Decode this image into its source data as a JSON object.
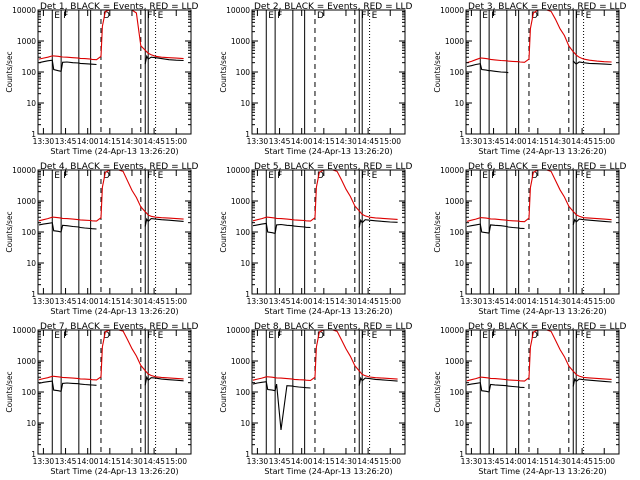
{
  "chart_data": {
    "type": "line",
    "y_scale": "log",
    "ylim": [
      1,
      10000
    ],
    "xlim": [
      "13:26:20",
      "15:10"
    ],
    "x_ticks": [
      "13:30",
      "13:45",
      "14:00",
      "14:15",
      "14:30",
      "14:45",
      "15:00"
    ],
    "y_ticks": [
      "1",
      "10",
      "100",
      "1000",
      "10000"
    ],
    "ylabel": "Counts/sec",
    "xlabel": "Start Time (24-Apr-13 13:26:20)",
    "legend_text": "BLACK = Events, RED = LLD",
    "series_colors": {
      "events": "#000000",
      "lld": "#dd0000"
    },
    "flag_lines": [
      {
        "time": "13:36",
        "style": "solid",
        "label": "E"
      },
      {
        "time": "13:42",
        "style": "solid",
        "label": "F"
      },
      {
        "time": "13:54",
        "style": "solid",
        "label": ""
      },
      {
        "time": "14:02",
        "style": "solid",
        "label": ""
      },
      {
        "time": "14:09",
        "style": "dashed",
        "label": "D"
      },
      {
        "time": "14:36",
        "style": "dashed",
        "label": ""
      },
      {
        "time": "14:39",
        "style": "solid",
        "label": "F"
      },
      {
        "time": "14:41",
        "style": "solid",
        "label": ""
      },
      {
        "time": "14:46",
        "style": "dotted",
        "label": "E"
      }
    ],
    "x_times": [
      "13:27",
      "13:30",
      "13:33",
      "13:36",
      "13:37",
      "13:40",
      "13:42",
      "13:43",
      "13:46",
      "13:50",
      "13:54",
      "13:55",
      "13:58",
      "14:02",
      "14:03",
      "14:06",
      "14:09",
      "14:10",
      "14:12",
      "14:15",
      "14:18",
      "14:21",
      "14:24",
      "14:27",
      "14:30",
      "14:33",
      "14:36",
      "14:39",
      "14:40",
      "14:41",
      "14:43",
      "14:46",
      "14:50",
      "14:55",
      "15:00",
      "15:05"
    ],
    "panels": [
      {
        "title": "Det 1",
        "events": [
          200,
          215,
          230,
          240,
          120,
          110,
          105,
          205,
          210,
          200,
          195,
          190,
          185,
          180,
          178,
          175,
          null,
          null,
          null,
          null,
          null,
          null,
          null,
          null,
          null,
          null,
          null,
          180,
          320,
          260,
          300,
          290,
          270,
          250,
          240,
          235
        ],
        "lld": [
          260,
          280,
          300,
          330,
          330,
          320,
          310,
          305,
          300,
          290,
          280,
          275,
          270,
          260,
          255,
          250,
          320,
          3000,
          9000,
          10000,
          10000,
          10000,
          10000,
          10000,
          10000,
          8000,
          700,
          500,
          450,
          400,
          360,
          320,
          300,
          290,
          280,
          270
        ]
      },
      {
        "title": "Det 2",
        "events": [],
        "lld": []
      },
      {
        "title": "Det 3",
        "events": [
          150,
          160,
          175,
          185,
          120,
          115,
          110,
          110,
          105,
          100,
          98,
          95,
          null,
          null,
          null,
          null,
          null,
          null,
          null,
          null,
          null,
          null,
          null,
          null,
          null,
          null,
          null,
          230,
          200,
          180,
          210,
          200,
          190,
          185,
          180,
          175
        ],
        "lld": [
          200,
          220,
          250,
          280,
          280,
          270,
          260,
          255,
          245,
          235,
          230,
          225,
          220,
          215,
          210,
          205,
          260,
          2500,
          8000,
          10000,
          10000,
          10000,
          9000,
          5000,
          2500,
          1500,
          700,
          450,
          400,
          350,
          300,
          260,
          240,
          225,
          215,
          210
        ]
      },
      {
        "title": "Det 4",
        "events": [
          170,
          180,
          190,
          200,
          110,
          105,
          100,
          165,
          160,
          150,
          145,
          140,
          135,
          130,
          128,
          125,
          null,
          null,
          null,
          null,
          null,
          null,
          null,
          null,
          null,
          null,
          null,
          150,
          260,
          220,
          270,
          260,
          250,
          240,
          230,
          220
        ],
        "lld": [
          230,
          250,
          270,
          300,
          300,
          290,
          280,
          275,
          270,
          260,
          250,
          245,
          240,
          235,
          230,
          225,
          290,
          2800,
          8500,
          10000,
          10000,
          10000,
          9000,
          4500,
          2200,
          1300,
          650,
          450,
          400,
          350,
          320,
          300,
          290,
          280,
          270,
          260
        ]
      },
      {
        "title": "Det 5",
        "events": [
          160,
          170,
          180,
          190,
          100,
          95,
          90,
          170,
          175,
          165,
          160,
          155,
          150,
          145,
          142,
          140,
          null,
          null,
          null,
          null,
          null,
          null,
          null,
          null,
          null,
          null,
          null,
          140,
          240,
          200,
          250,
          240,
          230,
          220,
          210,
          205
        ],
        "lld": [
          230,
          250,
          270,
          300,
          300,
          290,
          280,
          275,
          270,
          260,
          250,
          245,
          240,
          235,
          230,
          225,
          290,
          2800,
          8500,
          10000,
          10000,
          10000,
          9000,
          4800,
          2400,
          1400,
          700,
          480,
          420,
          370,
          330,
          300,
          285,
          275,
          265,
          255
        ]
      },
      {
        "title": "Det 6",
        "events": [
          150,
          160,
          170,
          180,
          100,
          95,
          92,
          170,
          165,
          160,
          150,
          145,
          140,
          135,
          132,
          130,
          null,
          null,
          null,
          null,
          null,
          null,
          null,
          null,
          null,
          null,
          null,
          170,
          250,
          210,
          260,
          250,
          240,
          230,
          220,
          210
        ],
        "lld": [
          220,
          240,
          260,
          290,
          290,
          280,
          270,
          265,
          260,
          250,
          240,
          235,
          230,
          225,
          220,
          215,
          280,
          2700,
          8500,
          10000,
          10000,
          10000,
          9000,
          4600,
          2300,
          1350,
          680,
          460,
          410,
          360,
          320,
          290,
          280,
          270,
          260,
          250
        ]
      },
      {
        "title": "Det 7",
        "events": [
          190,
          205,
          215,
          225,
          115,
          110,
          105,
          190,
          195,
          190,
          185,
          180,
          175,
          170,
          168,
          165,
          null,
          null,
          null,
          null,
          null,
          null,
          null,
          null,
          null,
          null,
          null,
          165,
          300,
          240,
          290,
          280,
          260,
          250,
          240,
          230
        ],
        "lld": [
          250,
          270,
          290,
          320,
          320,
          310,
          300,
          295,
          290,
          280,
          270,
          265,
          260,
          255,
          250,
          245,
          310,
          2900,
          8800,
          10000,
          10000,
          10000,
          9200,
          4900,
          2500,
          1450,
          720,
          490,
          430,
          380,
          340,
          310,
          295,
          285,
          275,
          265
        ]
      },
      {
        "title": "Det 8",
        "events": [
          180,
          195,
          205,
          215,
          120,
          115,
          110,
          180,
          6,
          160,
          155,
          150,
          145,
          140,
          138,
          135,
          null,
          null,
          null,
          null,
          null,
          null,
          null,
          null,
          null,
          null,
          null,
          160,
          280,
          230,
          280,
          270,
          255,
          245,
          235,
          225
        ],
        "lld": [
          240,
          260,
          280,
          310,
          310,
          300,
          290,
          285,
          280,
          270,
          260,
          255,
          250,
          245,
          240,
          235,
          300,
          2850,
          8700,
          10000,
          10000,
          10000,
          9100,
          4800,
          2450,
          1420,
          710,
          480,
          420,
          370,
          335,
          305,
          290,
          280,
          270,
          260
        ]
      },
      {
        "title": "Det 9",
        "events": [
          170,
          180,
          190,
          200,
          110,
          105,
          100,
          175,
          170,
          165,
          160,
          155,
          150,
          145,
          142,
          140,
          null,
          null,
          null,
          null,
          null,
          null,
          null,
          null,
          null,
          null,
          null,
          150,
          260,
          220,
          260,
          250,
          240,
          230,
          220,
          210
        ],
        "lld": [
          230,
          250,
          270,
          300,
          300,
          290,
          280,
          275,
          270,
          260,
          250,
          245,
          240,
          235,
          230,
          225,
          290,
          2800,
          8600,
          10000,
          10000,
          10000,
          9000,
          4700,
          2350,
          1380,
          690,
          470,
          415,
          365,
          325,
          295,
          285,
          275,
          265,
          255
        ]
      }
    ]
  }
}
